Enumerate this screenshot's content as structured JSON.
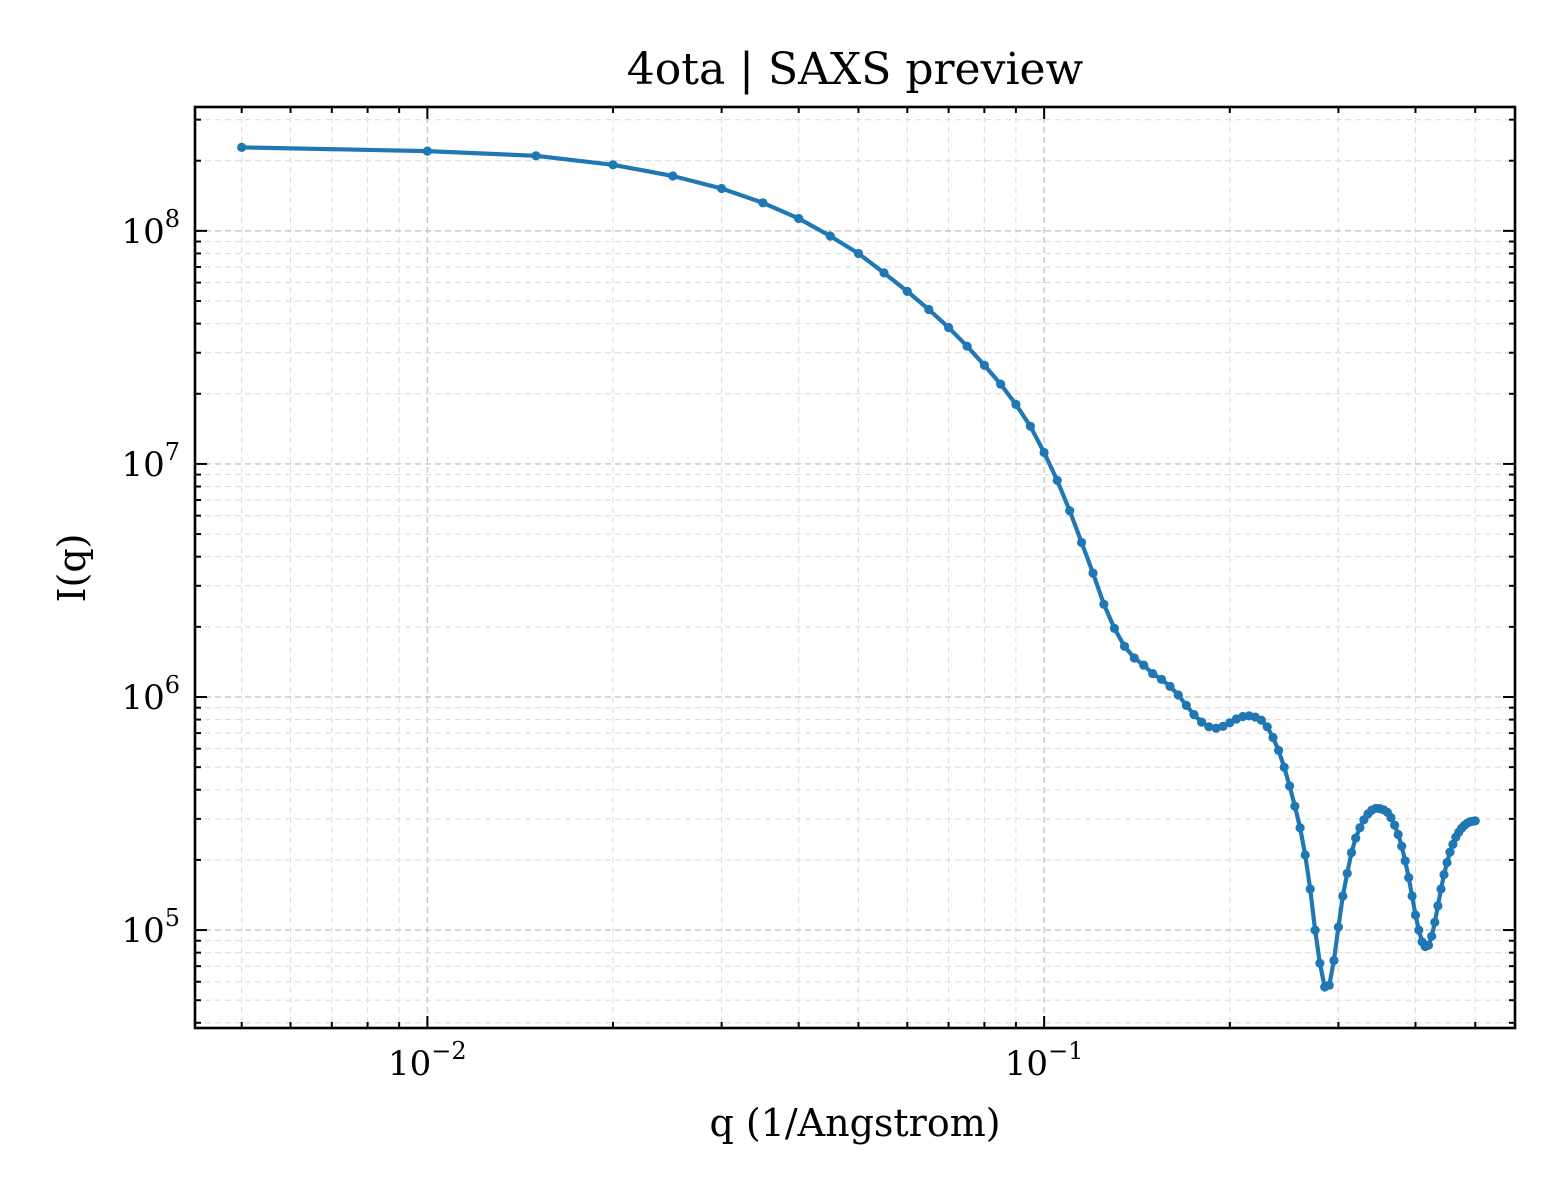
{
  "chart_data": {
    "type": "line",
    "title": "4ota | SAXS preview",
    "xlabel": "q (1/Angstrom)",
    "ylabel": "I(q)",
    "xscale": "log",
    "yscale": "log",
    "xlim": [
      0.0042,
      0.58
    ],
    "ylim": [
      38000,
      340000000
    ],
    "grid": "on (major and minor, dashed)",
    "x_tick_labels": [
      {
        "base": "10",
        "exp": "−2",
        "value": 0.01
      },
      {
        "base": "10",
        "exp": "−1",
        "value": 0.1
      }
    ],
    "y_tick_labels": [
      {
        "base": "10",
        "exp": "5",
        "value": 100000
      },
      {
        "base": "10",
        "exp": "6",
        "value": 1000000
      },
      {
        "base": "10",
        "exp": "7",
        "value": 10000000
      },
      {
        "base": "10",
        "exp": "8",
        "value": 100000000
      }
    ],
    "color": "#1f77b4",
    "series": [
      {
        "x": [
          0.005,
          0.01,
          0.015,
          0.02,
          0.025,
          0.03,
          0.035,
          0.04,
          0.045,
          0.05,
          0.055,
          0.06,
          0.065,
          0.07,
          0.075,
          0.08,
          0.085,
          0.09,
          0.095,
          0.1,
          0.105,
          0.11,
          0.115,
          0.12,
          0.125,
          0.13,
          0.135,
          0.14,
          0.145,
          0.15,
          0.155,
          0.16,
          0.165,
          0.17,
          0.175,
          0.18,
          0.185,
          0.19,
          0.195,
          0.2,
          0.205,
          0.21,
          0.215,
          0.22,
          0.225,
          0.23,
          0.235,
          0.24,
          0.245,
          0.25,
          0.255,
          0.26,
          0.265,
          0.27,
          0.275,
          0.28,
          0.285,
          0.29,
          0.295,
          0.3,
          0.305,
          0.31,
          0.315,
          0.32,
          0.325,
          0.33,
          0.335,
          0.34,
          0.345,
          0.35,
          0.355,
          0.36,
          0.365,
          0.37,
          0.375,
          0.38,
          0.385,
          0.39,
          0.395,
          0.4,
          0.405,
          0.41,
          0.415,
          0.42,
          0.425,
          0.43,
          0.435,
          0.44,
          0.445,
          0.45,
          0.455,
          0.46,
          0.465,
          0.47,
          0.475,
          0.48,
          0.485,
          0.49,
          0.495,
          0.5
        ],
        "y": [
          228000000,
          220000000,
          210000000,
          192000000,
          172000000,
          152000000,
          132000000,
          113000000,
          95000000,
          80000000,
          66000000,
          55000000,
          46000000,
          38500000,
          32000000,
          26500000,
          22000000,
          18000000,
          14500000,
          11200000,
          8500000,
          6300000,
          4600000,
          3400000,
          2500000,
          1970000,
          1650000,
          1470000,
          1370000,
          1260000,
          1190000,
          1110000,
          1020000,
          920000,
          840000,
          780000,
          745000,
          735000,
          748000,
          775000,
          805000,
          825000,
          830000,
          820000,
          795000,
          745000,
          670000,
          590000,
          500000,
          415000,
          340000,
          275000,
          210000,
          150000,
          100000,
          72000,
          57000,
          58000,
          74000,
          103000,
          140000,
          175000,
          215000,
          248000,
          275000,
          297000,
          315000,
          327000,
          333000,
          332000,
          328000,
          320000,
          304000,
          282000,
          257000,
          229000,
          198000,
          168000,
          140000,
          116000,
          100000,
          89000,
          85000,
          86000,
          94000,
          108000,
          127000,
          150000,
          173000,
          195000,
          216000,
          233000,
          250000,
          263000,
          273000,
          281000,
          287000,
          291000,
          293000,
          294000
        ]
      }
    ]
  }
}
